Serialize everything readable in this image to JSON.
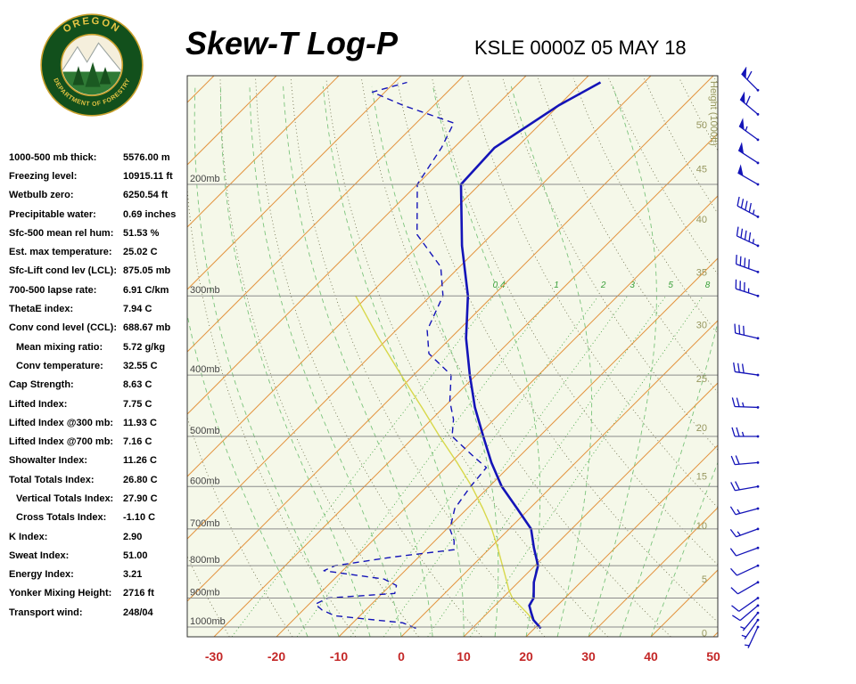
{
  "header": {
    "title": "Skew-T Log-P",
    "station": "KSLE 0000Z 05 MAY 18",
    "logo_top": "OREGON",
    "logo_bottom": "DEPARTMENT OF FORESTRY"
  },
  "indices": [
    {
      "label": "1000-500 mb thick:",
      "value": "5576.00 m",
      "indent": false
    },
    {
      "label": "Freezing level:",
      "value": "10915.11 ft",
      "indent": false
    },
    {
      "label": "Wetbulb zero:",
      "value": "6250.54 ft",
      "indent": false
    },
    {
      "label": "Precipitable water:",
      "value": "0.69 inches",
      "indent": false
    },
    {
      "label": "Sfc-500 mean rel hum:",
      "value": "51.53 %",
      "indent": false
    },
    {
      "label": "Est. max temperature:",
      "value": "25.02 C",
      "indent": false
    },
    {
      "label": "Sfc-Lift cond lev (LCL):",
      "value": "875.05 mb",
      "indent": false
    },
    {
      "label": "700-500 lapse rate:",
      "value": "6.91 C/km",
      "indent": false
    },
    {
      "label": "ThetaE index:",
      "value": "7.94 C",
      "indent": false
    },
    {
      "label": "Conv cond level (CCL):",
      "value": "688.67 mb",
      "indent": false
    },
    {
      "label": "Mean mixing ratio:",
      "value": "5.72 g/kg",
      "indent": true
    },
    {
      "label": "Conv temperature:",
      "value": "32.55 C",
      "indent": true
    },
    {
      "label": "Cap Strength:",
      "value": "8.63 C",
      "indent": false
    },
    {
      "label": "Lifted Index:",
      "value": "7.75 C",
      "indent": false
    },
    {
      "label": "Lifted Index @300 mb:",
      "value": "11.93 C",
      "indent": false
    },
    {
      "label": "Lifted Index @700 mb:",
      "value": "7.16 C",
      "indent": false
    },
    {
      "label": "Showalter Index:",
      "value": "11.26 C",
      "indent": false
    },
    {
      "label": "Total Totals Index:",
      "value": "26.80 C",
      "indent": false
    },
    {
      "label": "Vertical Totals Index:",
      "value": "27.90 C",
      "indent": true
    },
    {
      "label": "Cross Totals Index:",
      "value": "-1.10 C",
      "indent": true
    },
    {
      "label": "K Index:",
      "value": "2.90",
      "indent": false
    },
    {
      "label": "Sweat Index:",
      "value": "51.00",
      "indent": false
    },
    {
      "label": "Energy Index:",
      "value": "3.21",
      "indent": false
    },
    {
      "label": "Yonker Mixing Height:",
      "value": "2716 ft",
      "indent": false
    },
    {
      "label": "Transport wind:",
      "value": "248/04",
      "indent": false
    }
  ],
  "chart_data": {
    "type": "line",
    "title": "Skew-T Log-P sounding, KSLE 0000Z 05 MAY 18",
    "x_axis_ticks": [
      -30,
      -20,
      -10,
      0,
      10,
      20,
      30,
      40,
      50
    ],
    "pressure_lines": [
      200,
      300,
      400,
      500,
      600,
      700,
      800,
      900,
      1000
    ],
    "pressure_label_suffix": "mb",
    "height_axis": {
      "label": "Height (1000ft)",
      "ticks": [
        0,
        5,
        10,
        15,
        20,
        25,
        30,
        35,
        40,
        45,
        50
      ],
      "tick_pressures": [
        1021,
        839,
        691,
        578,
        484,
        405,
        333,
        275,
        227,
        189,
        161
      ]
    },
    "mixing_ratio_lines": [
      0.4,
      1,
      2,
      3,
      5,
      8
    ],
    "isotherms": {
      "min": -120,
      "max": 50,
      "step": 10
    },
    "dry_adiabats": {
      "min": -30,
      "max": 200,
      "step": 10
    },
    "moist_adiabats": {
      "min": -15,
      "max": 40,
      "step": 5
    },
    "temperature_profile": {
      "pressure": [
        1005,
        975,
        950,
        925,
        900,
        850,
        800,
        750,
        700,
        650,
        600,
        550,
        500,
        450,
        400,
        350,
        300,
        250,
        200,
        175,
        150,
        138
      ],
      "temp_c": [
        21,
        18.5,
        17,
        15.5,
        15,
        12.5,
        10.5,
        7,
        3.5,
        -2,
        -8,
        -13.5,
        -19,
        -25,
        -31,
        -37.5,
        -44,
        -53,
        -63,
        -63.5,
        -60,
        -57
      ]
    },
    "dewpoint_profile": {
      "pressure": [
        1005,
        985,
        960,
        940,
        920,
        900,
        885,
        860,
        840,
        815,
        800,
        775,
        755,
        730,
        700,
        650,
        600,
        560,
        540,
        500,
        470,
        440,
        400,
        370,
        340,
        300,
        270,
        240,
        200,
        175,
        160,
        150,
        143,
        138
      ],
      "temp_c": [
        1,
        -2,
        -14,
        -17,
        -19,
        -18,
        -8,
        -9,
        -12,
        -23,
        -22,
        -14,
        -5.5,
        -7,
        -9.5,
        -12,
        -13,
        -13.5,
        -17,
        -24,
        -26.5,
        -30,
        -34,
        -41,
        -45,
        -48,
        -53,
        -62,
        -70,
        -72,
        -74,
        -85,
        -92,
        -88
      ]
    },
    "parcel_profile": {
      "pressure": [
        1005,
        950,
        900,
        875,
        850,
        800,
        750,
        700,
        650,
        600,
        550,
        500,
        450,
        400,
        350,
        300
      ],
      "temp_c": [
        21,
        16.3,
        11.6,
        9.8,
        8.2,
        4.8,
        1.2,
        -2.8,
        -7.5,
        -12.8,
        -19,
        -26,
        -33.5,
        -42,
        -51.5,
        -62
      ]
    },
    "wind_barbs": [
      {
        "p": 1000,
        "dir": 205,
        "spd": 4
      },
      {
        "p": 975,
        "dir": 215,
        "spd": 5
      },
      {
        "p": 950,
        "dir": 220,
        "spd": 7
      },
      {
        "p": 925,
        "dir": 230,
        "spd": 8
      },
      {
        "p": 900,
        "dir": 235,
        "spd": 10
      },
      {
        "p": 850,
        "dir": 240,
        "spd": 12
      },
      {
        "p": 800,
        "dir": 245,
        "spd": 10
      },
      {
        "p": 750,
        "dir": 250,
        "spd": 12
      },
      {
        "p": 700,
        "dir": 250,
        "spd": 15
      },
      {
        "p": 650,
        "dir": 255,
        "spd": 15
      },
      {
        "p": 600,
        "dir": 260,
        "spd": 18
      },
      {
        "p": 550,
        "dir": 265,
        "spd": 20
      },
      {
        "p": 500,
        "dir": 270,
        "spd": 23
      },
      {
        "p": 450,
        "dir": 272,
        "spd": 25
      },
      {
        "p": 400,
        "dir": 278,
        "spd": 28
      },
      {
        "p": 350,
        "dir": 283,
        "spd": 32
      },
      {
        "p": 300,
        "dir": 288,
        "spd": 35
      },
      {
        "p": 275,
        "dir": 290,
        "spd": 38
      },
      {
        "p": 250,
        "dir": 295,
        "spd": 43
      },
      {
        "p": 225,
        "dir": 298,
        "spd": 45
      },
      {
        "p": 200,
        "dir": 300,
        "spd": 48
      },
      {
        "p": 185,
        "dir": 303,
        "spd": 50
      },
      {
        "p": 170,
        "dir": 306,
        "spd": 55
      },
      {
        "p": 155,
        "dir": 310,
        "spd": 58
      },
      {
        "p": 142,
        "dir": 315,
        "spd": 62
      }
    ],
    "colors": {
      "isotherm": "#e39540",
      "dry_adiabat": "#6b6b47",
      "moist_adiabat": "#7cc47c",
      "mixing_ratio": "#3aa03a",
      "pressure_line": "#8c8c8c",
      "temperature": "#1414b8",
      "dewpoint": "#1414b8",
      "parcel": "#d8d84a",
      "wind_barb": "#1414b8",
      "x_tick": "#c42727",
      "height_tick": "#97975f",
      "plot_bg": "#f5f8e9"
    }
  }
}
